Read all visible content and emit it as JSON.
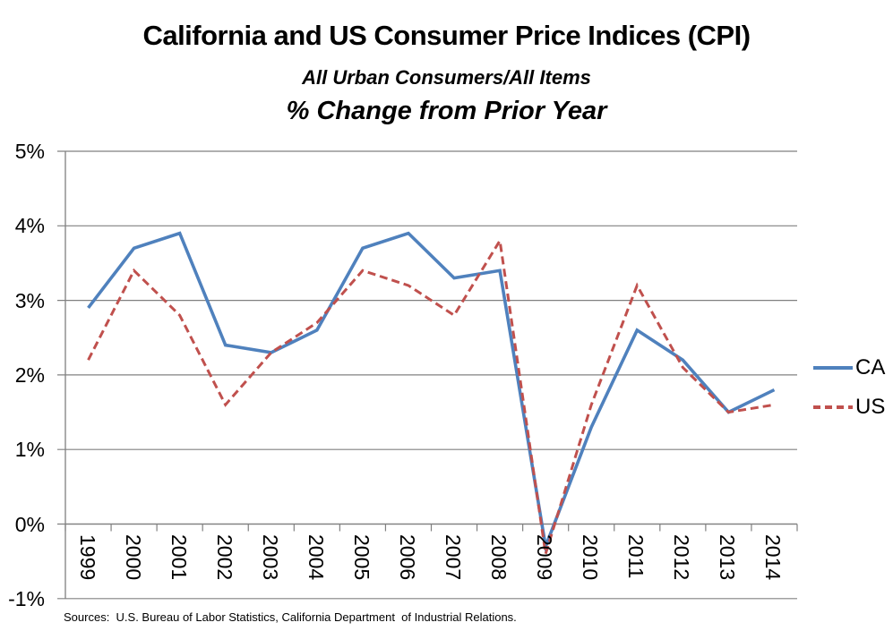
{
  "chart_data": {
    "type": "line",
    "title": "California and US Consumer Price Indices (CPI)",
    "subtitle": "All Urban Consumers/All Items",
    "subtitle2": "% Change from Prior Year",
    "categories": [
      "1999",
      "2000",
      "2001",
      "2002",
      "2003",
      "2004",
      "2005",
      "2006",
      "2007",
      "2008",
      "2009",
      "2010",
      "2011",
      "2012",
      "2013",
      "2014"
    ],
    "series": [
      {
        "name": "CA",
        "color": "#4F81BD",
        "dash": "solid",
        "values": [
          2.9,
          3.7,
          3.9,
          2.4,
          2.3,
          2.6,
          3.7,
          3.9,
          3.3,
          3.4,
          -0.3,
          1.3,
          2.6,
          2.2,
          1.5,
          1.8
        ]
      },
      {
        "name": "US",
        "color": "#C0504D",
        "dash": "dashed",
        "values": [
          2.2,
          3.4,
          2.8,
          1.6,
          2.3,
          2.7,
          3.4,
          3.2,
          2.8,
          3.8,
          -0.4,
          1.6,
          3.2,
          2.1,
          1.5,
          1.6
        ]
      }
    ],
    "y_axis": {
      "min": -1,
      "max": 5,
      "step": 1,
      "tick_labels": [
        "5%",
        "4%",
        "3%",
        "2%",
        "1%",
        "0%",
        "-1%"
      ]
    },
    "grid": true,
    "legend_position": "right",
    "axis_color": "#808080",
    "grid_color": "#808080"
  },
  "source_note": "Sources:  U.S. Bureau of Labor Statistics, California Department  of Industrial Relations."
}
